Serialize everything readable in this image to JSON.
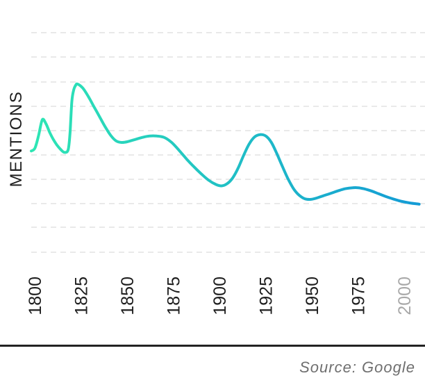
{
  "chart_data": {
    "type": "line",
    "title": "",
    "xlabel": "",
    "ylabel": "MENTIONS",
    "grid": true,
    "xlim": [
      1800,
      2010
    ],
    "ylim": [
      0,
      100
    ],
    "x_ticks": [
      {
        "label": "1800",
        "value": 1800,
        "muted": false
      },
      {
        "label": "1825",
        "value": 1825,
        "muted": false
      },
      {
        "label": "1850",
        "value": 1850,
        "muted": false
      },
      {
        "label": "1875",
        "value": 1875,
        "muted": false
      },
      {
        "label": "1900",
        "value": 1900,
        "muted": false
      },
      {
        "label": "1925",
        "value": 1925,
        "muted": false
      },
      {
        "label": "1950",
        "value": 1950,
        "muted": false
      },
      {
        "label": "1975",
        "value": 1975,
        "muted": false
      },
      {
        "label": "2000",
        "value": 2000,
        "muted": true
      }
    ],
    "gradient_colors": [
      "#2ee6b4",
      "#139ad6"
    ],
    "series": [
      {
        "x": [
          1800,
          1802,
          1804,
          1806,
          1808,
          1810,
          1812,
          1814,
          1816,
          1818,
          1820,
          1821,
          1822,
          1823,
          1824,
          1825,
          1828,
          1831,
          1834,
          1837,
          1840,
          1843,
          1846,
          1849,
          1852,
          1856,
          1860,
          1864,
          1868,
          1872,
          1876,
          1880,
          1884,
          1888,
          1892,
          1896,
          1900,
          1903,
          1906,
          1909,
          1912,
          1915,
          1918,
          1921,
          1924,
          1927,
          1930,
          1933,
          1936,
          1939,
          1942,
          1945,
          1948,
          1951,
          1954,
          1958,
          1962,
          1966,
          1970,
          1974,
          1977,
          1980,
          1984,
          1988,
          1992,
          1996,
          2000,
          2005,
          2010
        ],
        "y": [
          34,
          36,
          45,
          56,
          53,
          47,
          42,
          38,
          35,
          33,
          35,
          47,
          69,
          77,
          80,
          81,
          78,
          72,
          65,
          58,
          51,
          45,
          41,
          40,
          40.5,
          42,
          43.5,
          44.5,
          44.5,
          43.5,
          40,
          34.5,
          28.5,
          23,
          18,
          13.5,
          10.5,
          9.5,
          11,
          15,
          22,
          31,
          39,
          44,
          45.5,
          44.5,
          40,
          32,
          23,
          14.5,
          7.5,
          3,
          0.5,
          0,
          0.8,
          2.5,
          4.2,
          6,
          7.5,
          8.2,
          8.2,
          7.5,
          6,
          4,
          2,
          0.3,
          -1.2,
          -2.5,
          -3.3
        ]
      }
    ]
  },
  "source": {
    "label": "Source: Google"
  }
}
